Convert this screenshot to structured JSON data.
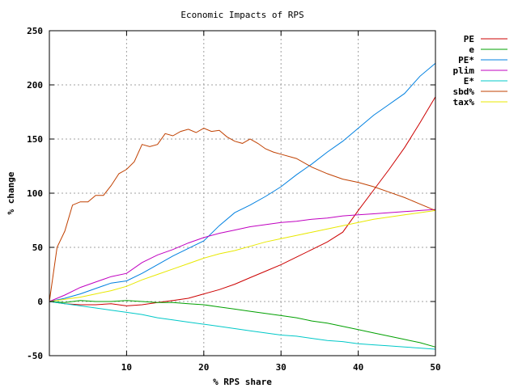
{
  "chart_data": {
    "type": "line",
    "title": "Economic Impacts of RPS",
    "xlabel": "% RPS share",
    "ylabel": "% change",
    "xlim": [
      0,
      50
    ],
    "ylim": [
      -50,
      250
    ],
    "xticks": [
      10,
      20,
      30,
      40,
      50
    ],
    "yticks": [
      -50,
      0,
      50,
      100,
      150,
      200,
      250
    ],
    "grid": true,
    "legend_position": "right",
    "series": [
      {
        "name": "PE",
        "color": "#cc0000",
        "x": [
          0,
          2,
          4,
          6,
          8,
          10,
          12,
          14,
          16,
          18,
          20,
          22,
          24,
          26,
          28,
          30,
          32,
          34,
          36,
          38,
          40,
          42,
          44,
          46,
          48,
          50
        ],
        "y": [
          0,
          -2,
          -3,
          -3,
          -2,
          -4,
          -3,
          -1,
          1,
          3,
          7,
          11,
          16,
          22,
          28,
          34,
          41,
          48,
          55,
          64,
          84,
          103,
          122,
          142,
          165,
          189
        ]
      },
      {
        "name": "e",
        "color": "#00a000",
        "x": [
          0,
          2,
          4,
          6,
          8,
          10,
          12,
          14,
          16,
          18,
          20,
          22,
          24,
          26,
          28,
          30,
          32,
          34,
          36,
          38,
          40,
          42,
          44,
          46,
          48,
          50
        ],
        "y": [
          0,
          -1,
          1,
          0,
          0,
          1,
          0,
          -1,
          -1,
          -2,
          -3,
          -5,
          -7,
          -9,
          -11,
          -13,
          -15,
          -18,
          -20,
          -23,
          -26,
          -29,
          -32,
          -35,
          -38,
          -42
        ]
      },
      {
        "name": "PE*",
        "color": "#0080e0",
        "x": [
          0,
          2,
          4,
          6,
          8,
          10,
          12,
          14,
          16,
          18,
          20,
          22,
          24,
          26,
          28,
          30,
          32,
          34,
          36,
          38,
          40,
          42,
          44,
          46,
          48,
          50
        ],
        "y": [
          0,
          3,
          7,
          12,
          17,
          19,
          26,
          34,
          42,
          49,
          56,
          70,
          82,
          89,
          97,
          106,
          117,
          127,
          138,
          148,
          160,
          172,
          182,
          192,
          208,
          220
        ]
      },
      {
        "name": "plim",
        "color": "#c000c0",
        "x": [
          0,
          2,
          4,
          6,
          8,
          10,
          12,
          14,
          16,
          18,
          20,
          22,
          24,
          26,
          28,
          30,
          32,
          34,
          36,
          38,
          40,
          42,
          44,
          46,
          48,
          50
        ],
        "y": [
          0,
          6,
          13,
          18,
          23,
          26,
          36,
          43,
          48,
          54,
          59,
          63,
          66,
          69,
          71,
          73,
          74,
          76,
          77,
          79,
          80,
          81,
          82,
          83,
          84,
          85
        ]
      },
      {
        "name": "E*",
        "color": "#00c8c8",
        "x": [
          0,
          2,
          4,
          6,
          8,
          10,
          12,
          14,
          16,
          18,
          20,
          22,
          24,
          26,
          28,
          30,
          32,
          34,
          36,
          38,
          40,
          42,
          44,
          46,
          48,
          50
        ],
        "y": [
          0,
          -2,
          -4,
          -6,
          -8,
          -10,
          -12,
          -15,
          -17,
          -19,
          -21,
          -23,
          -25,
          -27,
          -29,
          -31,
          -32,
          -34,
          -36,
          -37,
          -39,
          -40,
          -41,
          -42,
          -43,
          -44
        ]
      },
      {
        "name": "sbd%",
        "color": "#c04000",
        "x": [
          0,
          1,
          2,
          3,
          4,
          5,
          6,
          7,
          8,
          9,
          10,
          11,
          12,
          13,
          14,
          15,
          16,
          17,
          18,
          19,
          20,
          21,
          22,
          23,
          24,
          25,
          26,
          27,
          28,
          29,
          30,
          32,
          34,
          36,
          38,
          40,
          42,
          44,
          46,
          48,
          50
        ],
        "y": [
          0,
          50,
          65,
          89,
          92,
          92,
          98,
          98,
          107,
          118,
          122,
          129,
          145,
          143,
          145,
          155,
          153,
          157,
          159,
          156,
          160,
          157,
          158,
          152,
          148,
          146,
          150,
          146,
          141,
          138,
          136,
          132,
          124,
          118,
          113,
          110,
          106,
          101,
          96,
          90,
          84
        ]
      },
      {
        "name": "tax%",
        "color": "#e8e800",
        "x": [
          0,
          2,
          4,
          6,
          8,
          10,
          12,
          14,
          16,
          18,
          20,
          22,
          24,
          26,
          28,
          30,
          32,
          34,
          36,
          38,
          40,
          42,
          44,
          46,
          48,
          50
        ],
        "y": [
          0,
          2,
          4,
          7,
          10,
          14,
          20,
          25,
          30,
          35,
          40,
          44,
          47,
          51,
          55,
          58,
          61,
          64,
          67,
          70,
          73,
          76,
          78,
          80,
          82,
          84
        ]
      }
    ]
  }
}
